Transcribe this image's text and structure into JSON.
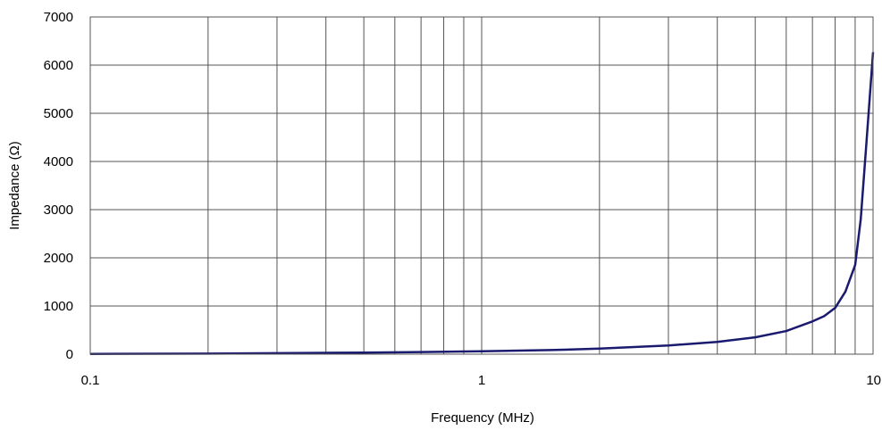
{
  "chart_data": {
    "type": "line",
    "title": "",
    "xlabel": "Frequency (MHz)",
    "ylabel": "Impedance (Ω)",
    "x_scale": "log",
    "xlim": [
      0.1,
      10
    ],
    "ylim": [
      0,
      7000
    ],
    "x_ticks": [
      {
        "value": 0.1,
        "label": "0.1"
      },
      {
        "value": 1,
        "label": "1"
      },
      {
        "value": 10,
        "label": "10"
      }
    ],
    "y_ticks": [
      {
        "value": 0,
        "label": "0"
      },
      {
        "value": 1000,
        "label": "1000"
      },
      {
        "value": 2000,
        "label": "2000"
      },
      {
        "value": 3000,
        "label": "3000"
      },
      {
        "value": 4000,
        "label": "4000"
      },
      {
        "value": 5000,
        "label": "5000"
      },
      {
        "value": 6000,
        "label": "6000"
      },
      {
        "value": 7000,
        "label": "7000"
      }
    ],
    "x_minor_gridlines": [
      0.2,
      0.3,
      0.4,
      0.5,
      0.6,
      0.7,
      0.8,
      0.9,
      2,
      3,
      4,
      5,
      6,
      7,
      8,
      9
    ],
    "grid": true,
    "line_color": "#1a1a6e",
    "series": [
      {
        "x": [
          0.1,
          0.2,
          0.3,
          0.5,
          0.7,
          1,
          1.5,
          2,
          3,
          4,
          5,
          6,
          7,
          7.5,
          8,
          8.5,
          9,
          9.3,
          9.6,
          10
        ],
        "y": [
          5,
          12,
          20,
          33,
          45,
          60,
          85,
          115,
          180,
          255,
          350,
          480,
          680,
          790,
          960,
          1300,
          1850,
          2800,
          4300,
          6270
        ]
      }
    ]
  }
}
